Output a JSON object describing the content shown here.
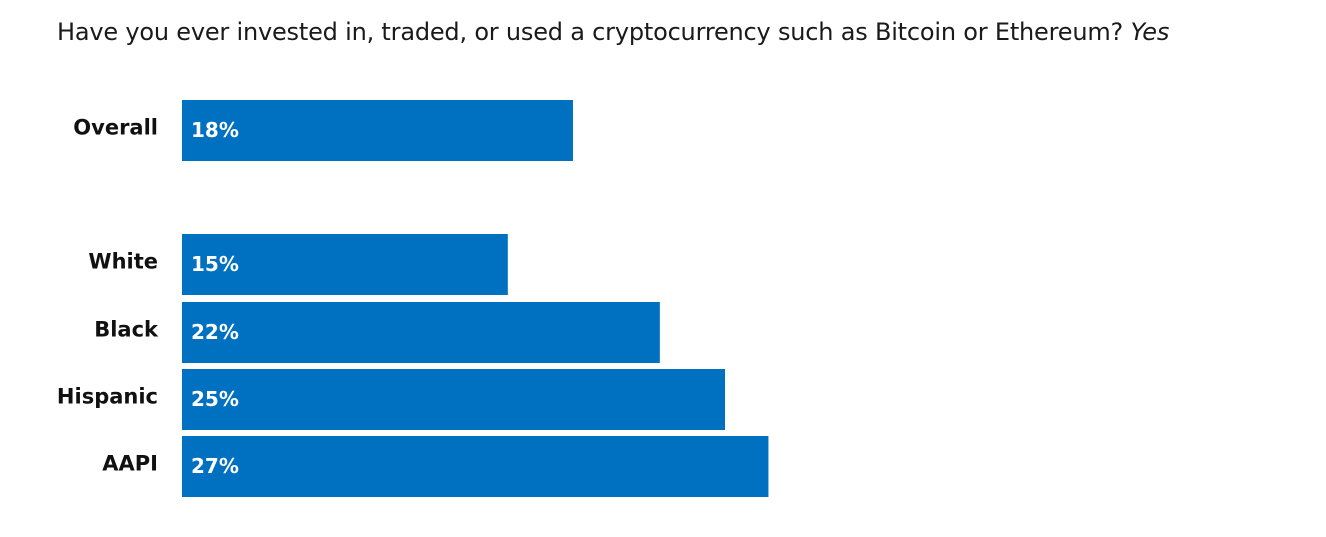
{
  "chart_data": {
    "type": "bar",
    "orientation": "horizontal",
    "title": "Have you ever invested in, traded, or used a cryptocurrency such as Bitcoin or Ethereum?",
    "title_emphasis": "Yes",
    "categories": [
      "Overall",
      "White",
      "Black",
      "Hispanic",
      "AAPI"
    ],
    "values": [
      18,
      15,
      22,
      25,
      27
    ],
    "value_labels": [
      "18%",
      "15%",
      "22%",
      "25%",
      "27%"
    ],
    "unit": "%",
    "xlabel": "",
    "ylabel": "",
    "grid": false,
    "legend": "none",
    "bar_color": "#0070c0"
  }
}
